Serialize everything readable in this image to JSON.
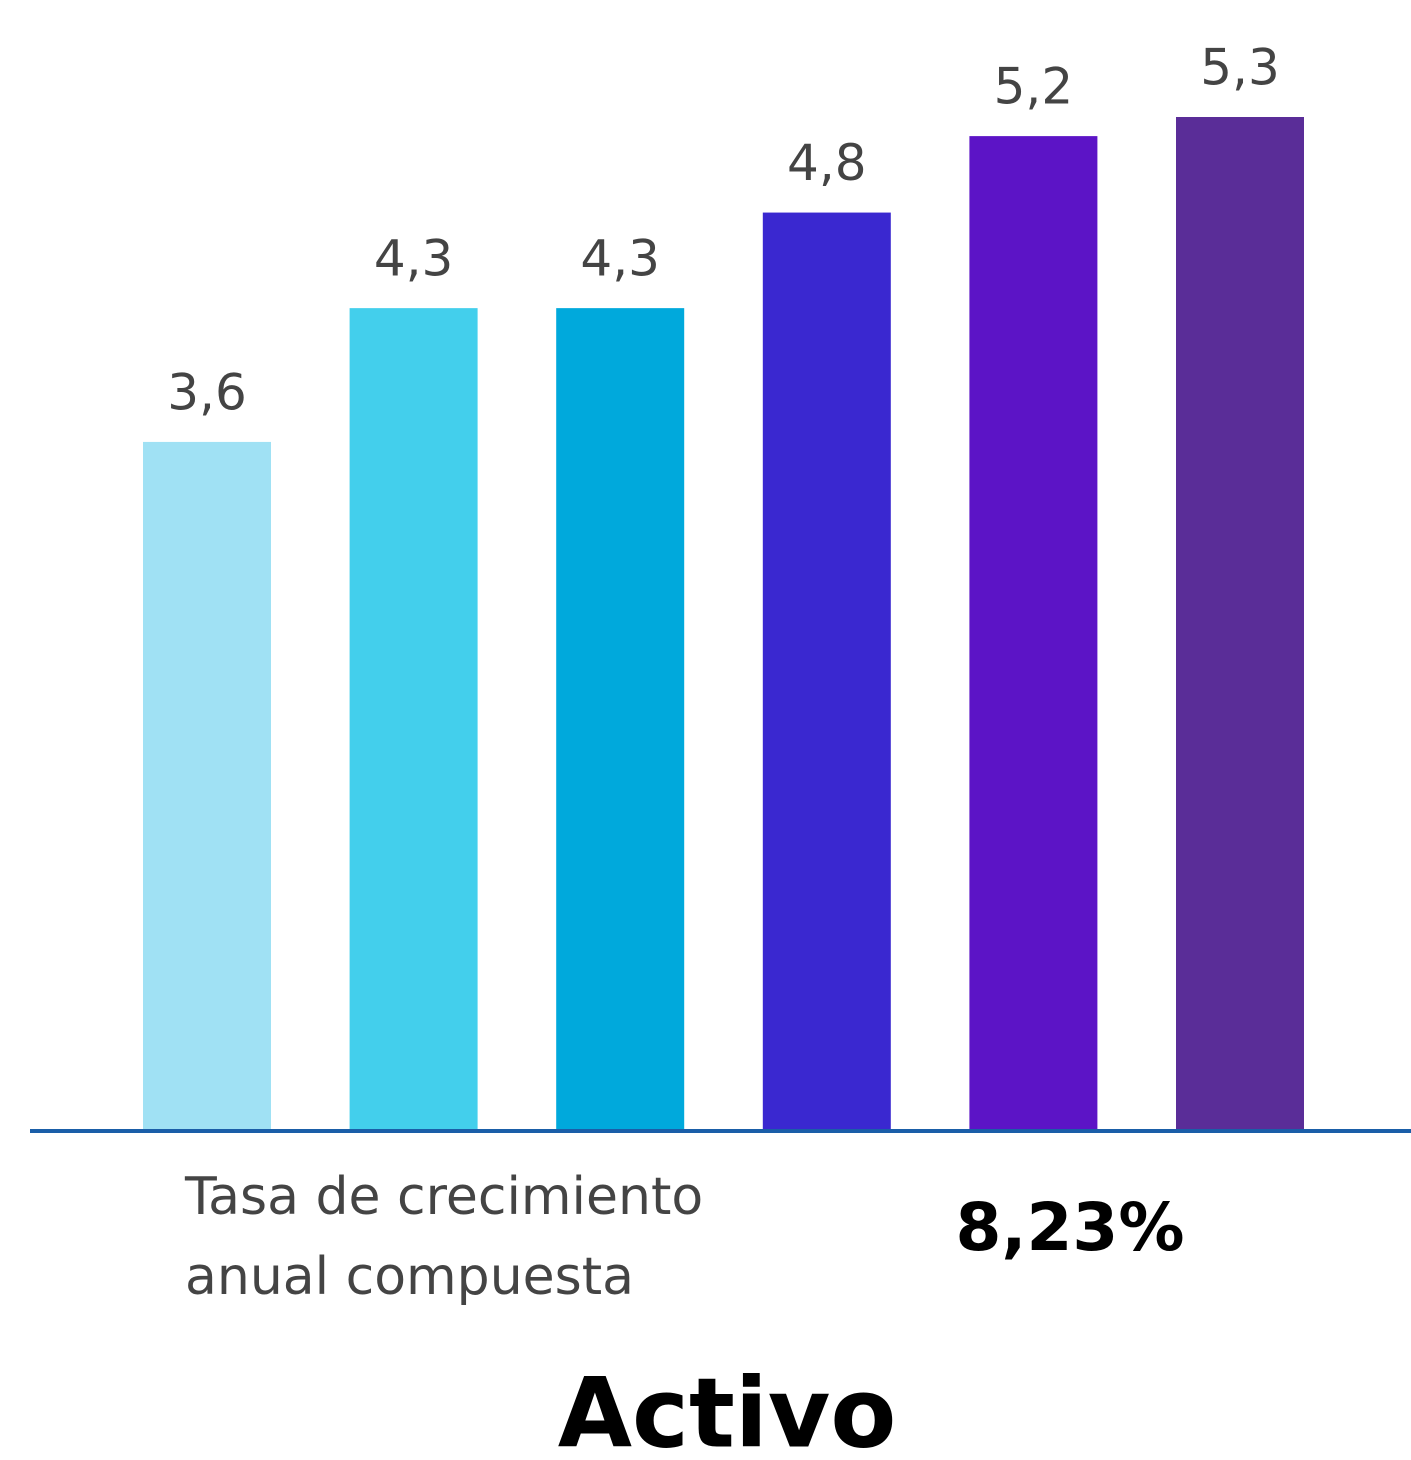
{
  "chart_data": {
    "type": "bar",
    "title": "Activo",
    "categories": [
      null,
      null,
      null,
      null,
      null,
      null
    ],
    "values": [
      3.6,
      4.3,
      4.3,
      4.8,
      5.2,
      5.3
    ],
    "value_labels": [
      "3,6",
      "4,3",
      "4,3",
      "4,8",
      "5,2",
      "5,3"
    ],
    "colors": [
      "#a0e1f4",
      "#43cfec",
      "#00a9dc",
      "#3a28d0",
      "#5c14c6",
      "#5a2d98"
    ],
    "annotation": {
      "lines": [
        "Tasa de crecimiento",
        "anual compuesta"
      ],
      "value": 8.23,
      "value_label": "8,23%"
    }
  }
}
